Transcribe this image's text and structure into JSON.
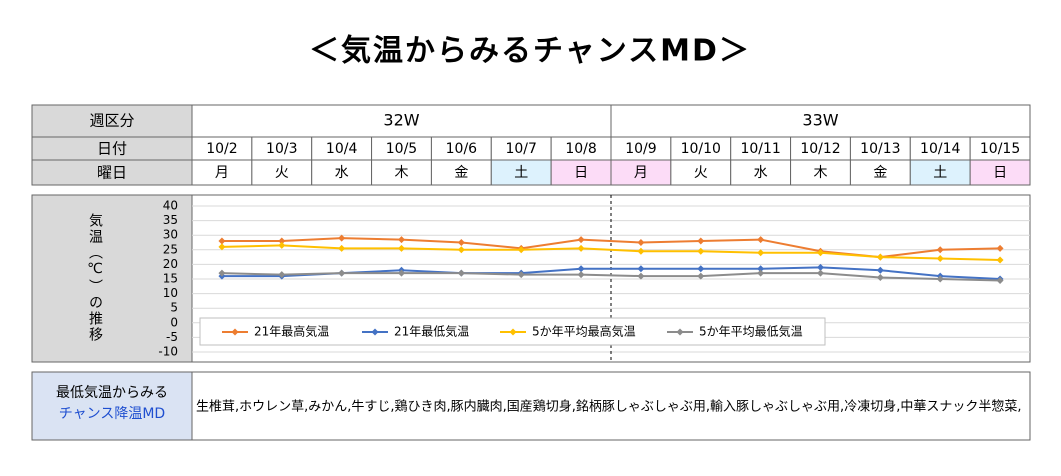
{
  "title": "＜気温からみるチャンスMD＞",
  "table": {
    "week_header": "週区分",
    "weeks": [
      "32W",
      "33W"
    ],
    "date_header": "日付",
    "weekday_header": "曜日",
    "dates": [
      "10/2",
      "10/3",
      "10/4",
      "10/5",
      "10/6",
      "10/7",
      "10/8",
      "10/9",
      "10/10",
      "10/11",
      "10/12",
      "10/13",
      "10/14",
      "10/15"
    ],
    "weekdays": [
      "月",
      "火",
      "水",
      "木",
      "金",
      "土",
      "日",
      "月",
      "火",
      "水",
      "木",
      "金",
      "土",
      "日"
    ],
    "weekday_colors": [
      "#ffffff",
      "#ffffff",
      "#ffffff",
      "#ffffff",
      "#ffffff",
      "#ddf2fd",
      "#fcdcf7",
      "#fcdcf7",
      "#ffffff",
      "#ffffff",
      "#ffffff",
      "#ffffff",
      "#ddf2fd",
      "#fcdcf7"
    ]
  },
  "chart_data": {
    "type": "line",
    "y_label": "気温（℃）の推移",
    "categories": [
      "10/2",
      "10/3",
      "10/4",
      "10/5",
      "10/6",
      "10/7",
      "10/8",
      "10/9",
      "10/10",
      "10/11",
      "10/12",
      "10/13",
      "10/14",
      "10/15"
    ],
    "ylim": [
      -10,
      40
    ],
    "yticks": [
      -10,
      -5,
      0,
      5,
      10,
      15,
      20,
      25,
      30,
      35,
      40
    ],
    "grid": true,
    "series": [
      {
        "name": "21年最高気温",
        "color": "#ed7d31",
        "values": [
          28,
          28,
          29,
          28.5,
          27.5,
          25.5,
          28.5,
          27.5,
          28,
          28.5,
          24.5,
          22.5,
          25,
          25.5
        ]
      },
      {
        "name": "21年最低気温",
        "color": "#4472c4",
        "values": [
          16,
          16,
          17,
          18,
          17,
          17,
          18.5,
          18.5,
          18.5,
          18.5,
          19,
          18,
          16,
          15
        ]
      },
      {
        "name": "5か年平均最高気温",
        "color": "#ffc000",
        "values": [
          26,
          26.5,
          25.5,
          25.5,
          25,
          25,
          25.5,
          24.5,
          24.5,
          24,
          24,
          22.5,
          22,
          21.5
        ]
      },
      {
        "name": "5か年平均最低気温",
        "color": "#8c8c8c",
        "values": [
          17,
          16.5,
          17,
          17,
          17,
          16.5,
          16.5,
          16,
          16,
          17,
          17,
          15.5,
          15,
          14.5
        ]
      }
    ]
  },
  "footer": {
    "label_line1": "最低気温からみる",
    "label_line2": "チャンス降温MD",
    "items": "生椎茸,ホウレン草,みかん,牛すじ,鶏ひき肉,豚内臓肉,国産鶏切身,銘柄豚しゃぶしゃぶ用,輸入豚しゃぶしゃぶ用,冷凍切身,中華スナック半惣菜,"
  }
}
